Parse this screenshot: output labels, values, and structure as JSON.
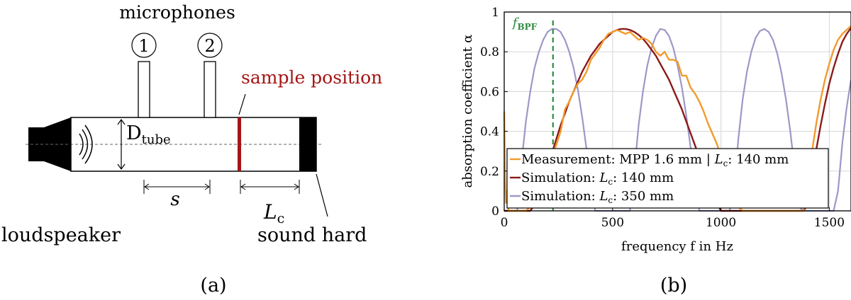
{
  "panel_a": {
    "label": "(a)",
    "microphones_label": "microphones",
    "mic_numbers": [
      "1",
      "2"
    ],
    "sample_position_label": "sample position",
    "d_tube_label": "D",
    "d_tube_sub": "tube",
    "s_label": "s",
    "lc_label": "L",
    "lc_sub": "c",
    "loudspeaker_label": "loudspeaker",
    "sound_hard_label": "sound hard",
    "colors": {
      "sample": "#a51515",
      "ink": "#000000"
    }
  },
  "panel_b": {
    "label": "(b)",
    "fbpf_label": "f",
    "fbpf_sub": "BPF",
    "legend": [
      {
        "pre": "Measurement:  MPP 1.6 mm | ",
        "sym": "L",
        "sub": "c",
        "post": ":  140 mm"
      },
      {
        "pre": "Simulation: ",
        "sym": "L",
        "sub": "c",
        "post": ":  140 mm"
      },
      {
        "pre": "Simulation: ",
        "sym": "L",
        "sub": "c",
        "post": ":  350 mm"
      }
    ]
  },
  "chart_data": {
    "type": "line",
    "xlabel": "frequency f in Hz",
    "ylabel": "absorption coefficient α",
    "xlim": [
      0,
      1600
    ],
    "ylim": [
      0,
      1
    ],
    "xticks": [
      0,
      500,
      1000,
      1500
    ],
    "yticks": [
      0,
      0.2,
      0.4,
      0.6,
      0.8,
      1
    ],
    "grid": true,
    "legend_position": "bottom-right",
    "vline": {
      "x": 225,
      "label": "fBPF",
      "color": "#2e8b3e"
    },
    "series": [
      {
        "name": "Measurement: MPP 1.6 mm | Lc: 140 mm",
        "color": "#f39a2b",
        "x": [
          0,
          4,
          8,
          12,
          20,
          30,
          40,
          60,
          80,
          100,
          120,
          140,
          160,
          180,
          200,
          220,
          240,
          260,
          280,
          300,
          320,
          340,
          360,
          380,
          400,
          420,
          440,
          460,
          480,
          500,
          520,
          540,
          560,
          580,
          600,
          620,
          640,
          660,
          680,
          700,
          720,
          740,
          760,
          780,
          800,
          820,
          840,
          860,
          880,
          900,
          920,
          940,
          960,
          980,
          1000,
          1020,
          1040,
          1060,
          1080,
          1100,
          1120,
          1140,
          1160,
          1180,
          1200,
          1220,
          1240,
          1260,
          1280,
          1300,
          1320,
          1340,
          1360,
          1380,
          1400,
          1420,
          1440,
          1460,
          1480,
          1500,
          1520,
          1540,
          1560,
          1580,
          1600
        ],
        "values": [
          0.5,
          0.18,
          0.04,
          0.1,
          0.0,
          0.0,
          0.0,
          0.0,
          0.0,
          0.0,
          0.02,
          0.06,
          0.13,
          0.19,
          0.24,
          0.28,
          0.33,
          0.4,
          0.51,
          0.55,
          0.6,
          0.64,
          0.66,
          0.7,
          0.76,
          0.79,
          0.82,
          0.86,
          0.89,
          0.9,
          0.91,
          0.9,
          0.89,
          0.9,
          0.88,
          0.86,
          0.87,
          0.86,
          0.84,
          0.8,
          0.78,
          0.8,
          0.76,
          0.76,
          0.75,
          0.68,
          0.68,
          0.62,
          0.59,
          0.55,
          0.5,
          0.44,
          0.39,
          0.34,
          0.28,
          0.2,
          0.14,
          0.07,
          0.02,
          0.0,
          0.0,
          0.0,
          0.0,
          0.0,
          0.0,
          0.0,
          0.0,
          0.0,
          0.0,
          0.0,
          0.0,
          0.0,
          0.0,
          0.0,
          0.1,
          0.3,
          0.44,
          0.56,
          0.66,
          0.74,
          0.81,
          0.86,
          0.89,
          0.91,
          0.93
        ]
      },
      {
        "name": "Simulation: Lc: 140 mm",
        "color": "#8b1a1a",
        "x": [
          0,
          20,
          40,
          60,
          80,
          100,
          120,
          140,
          160,
          180,
          200,
          220,
          240,
          260,
          280,
          300,
          320,
          340,
          360,
          380,
          400,
          420,
          440,
          460,
          480,
          500,
          520,
          540,
          560,
          580,
          600,
          620,
          640,
          660,
          680,
          700,
          720,
          740,
          760,
          780,
          800,
          820,
          840,
          860,
          880,
          900,
          920,
          940,
          960,
          980,
          1000,
          1020,
          1040,
          1060,
          1080,
          1100,
          1120,
          1140,
          1160,
          1180,
          1200,
          1220,
          1240,
          1260,
          1280,
          1300,
          1320,
          1340,
          1360,
          1380,
          1400,
          1420,
          1440,
          1460,
          1480,
          1500,
          1520,
          1540,
          1560,
          1580,
          1600
        ],
        "values": [
          0.0,
          0.0,
          0.0,
          0.0,
          0.0,
          0.0,
          0.0,
          0.03,
          0.08,
          0.15,
          0.22,
          0.29,
          0.36,
          0.43,
          0.49,
          0.55,
          0.6,
          0.65,
          0.7,
          0.74,
          0.78,
          0.81,
          0.84,
          0.86,
          0.88,
          0.9,
          0.91,
          0.915,
          0.915,
          0.91,
          0.9,
          0.885,
          0.865,
          0.84,
          0.81,
          0.78,
          0.74,
          0.7,
          0.66,
          0.61,
          0.56,
          0.51,
          0.45,
          0.39,
          0.33,
          0.27,
          0.21,
          0.15,
          0.09,
          0.04,
          0.0,
          0.0,
          0.0,
          0.0,
          0.0,
          0.0,
          0.0,
          0.0,
          0.0,
          0.0,
          0.0,
          0.0,
          0.0,
          0.0,
          0.0,
          0.0,
          0.0,
          0.0,
          0.0,
          0.0,
          0.03,
          0.18,
          0.31,
          0.43,
          0.54,
          0.64,
          0.72,
          0.79,
          0.85,
          0.89,
          0.92
        ]
      },
      {
        "name": "Simulation: Lc: 350 mm",
        "color": "#9c98c8",
        "x": [
          0,
          40,
          60,
          80,
          100,
          120,
          140,
          160,
          180,
          200,
          220,
          240,
          260,
          280,
          300,
          320,
          340,
          360,
          380,
          400,
          420,
          440,
          460,
          480,
          500,
          520,
          540,
          560,
          580,
          600,
          620,
          640,
          660,
          680,
          700,
          720,
          740,
          760,
          780,
          800,
          820,
          840,
          860,
          880,
          900,
          920,
          940,
          960,
          980,
          1000,
          1020,
          1040,
          1060,
          1080,
          1100,
          1120,
          1140,
          1160,
          1180,
          1200,
          1220,
          1240,
          1260,
          1280,
          1300,
          1320,
          1340,
          1360,
          1380,
          1400,
          1420,
          1440,
          1460,
          1480,
          1500,
          1520,
          1540,
          1560,
          1580,
          1600
        ],
        "values": [
          0.0,
          0.0,
          0.0,
          0.25,
          0.45,
          0.6,
          0.72,
          0.8,
          0.86,
          0.9,
          0.915,
          0.915,
          0.9,
          0.86,
          0.8,
          0.72,
          0.61,
          0.47,
          0.31,
          0.14,
          0.0,
          0.0,
          0.0,
          0.0,
          0.0,
          0.0,
          0.0,
          0.0,
          0.0,
          0.2,
          0.43,
          0.6,
          0.73,
          0.82,
          0.88,
          0.915,
          0.91,
          0.88,
          0.82,
          0.73,
          0.62,
          0.48,
          0.32,
          0.14,
          0.0,
          0.0,
          0.0,
          0.0,
          0.0,
          0.0,
          0.0,
          0.0,
          0.1,
          0.36,
          0.56,
          0.7,
          0.8,
          0.87,
          0.905,
          0.915,
          0.9,
          0.86,
          0.79,
          0.69,
          0.56,
          0.4,
          0.21,
          0.02,
          0.0,
          0.0,
          0.0,
          0.0,
          0.0,
          0.0,
          0.0,
          0.0,
          0.1,
          0.34,
          0.52,
          0.66
        ]
      }
    ]
  }
}
